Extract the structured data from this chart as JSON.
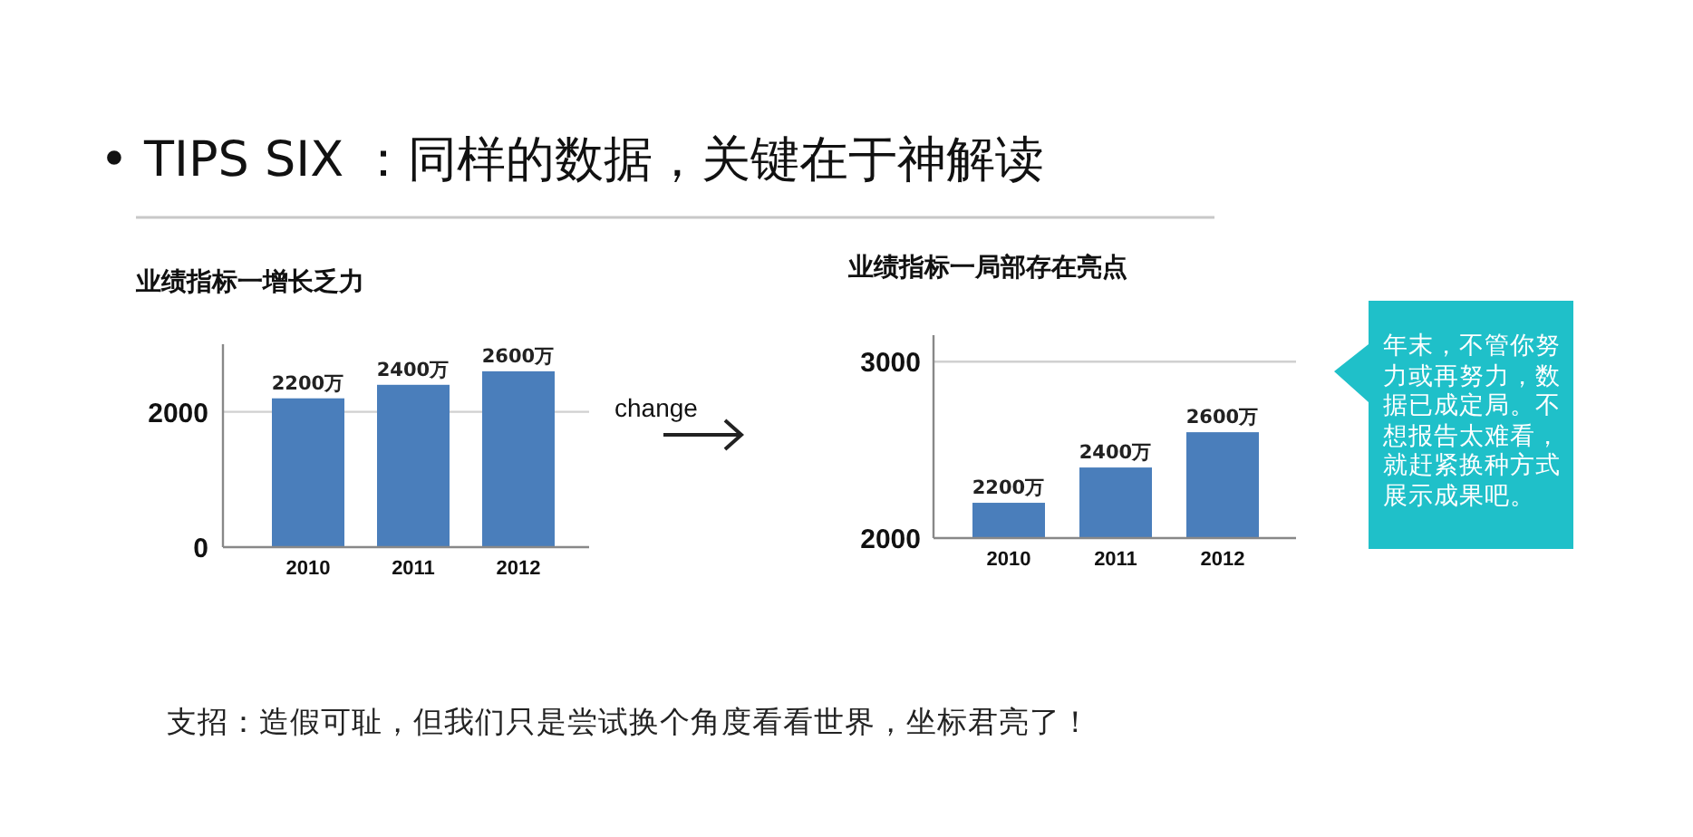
{
  "chart_data": [
    {
      "type": "bar",
      "title": "业绩指标一增长乏力",
      "categories": [
        "2010",
        "2011",
        "2012"
      ],
      "values": [
        2200,
        2400,
        2600
      ],
      "value_labels": [
        "2200万",
        "2400万",
        "2600万"
      ],
      "color": "#4a7ebb",
      "ylim": [
        0,
        3000
      ],
      "yticks": [
        0,
        2000
      ],
      "grid": "y",
      "annotations": [
        "• TIPS SIX ：同样的数据，关键在于神解读",
        "change",
        "支招：造假可耻，但我们只是尝试换个角度看看世界，坐标君亮了！"
      ]
    },
    {
      "type": "bar",
      "title": "业绩指标一局部存在亮点",
      "categories": [
        "2010",
        "2011",
        "2012"
      ],
      "values": [
        2200,
        2400,
        2600
      ],
      "value_labels": [
        "2200万",
        "2400万",
        "2600万"
      ],
      "color": "#4a7ebb",
      "ylim": [
        2000,
        3150
      ],
      "yticks": [
        2000,
        3000
      ],
      "grid": "y",
      "annotations": [
        "年末，不管你努力或再努力，数据已成定局。不想报告太难看，就赶紧换种方式展示成果吧。"
      ]
    }
  ]
}
